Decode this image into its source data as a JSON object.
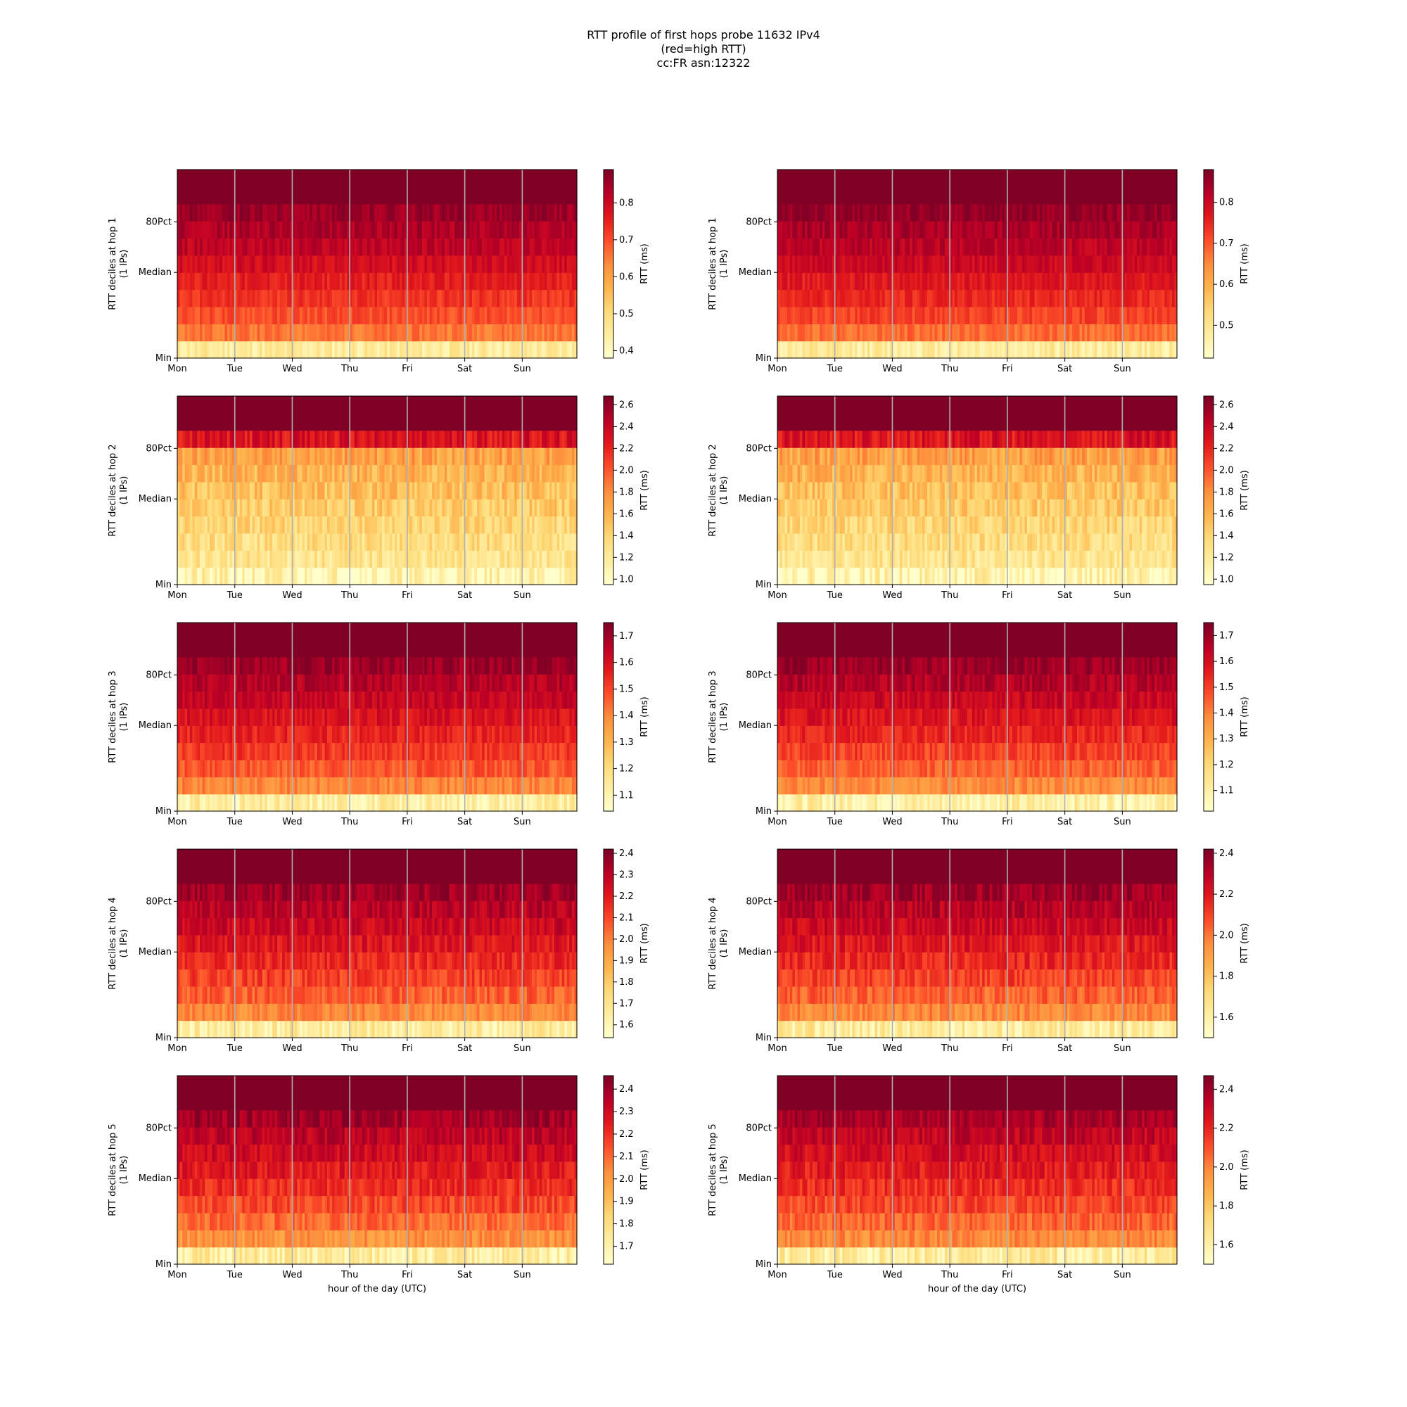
{
  "figure": {
    "title_lines": [
      "RTT profile of first hops probe 11632 IPv4",
      "(red=high RTT)",
      "cc:FR asn:12322"
    ],
    "xlabel": "hour of the day (UTC)",
    "colorbar_label": "RTT (ms)",
    "colormap": [
      "#ffffcc",
      "#ffeda0",
      "#fed976",
      "#feb24c",
      "#fd8d3c",
      "#fc4e2a",
      "#e31a1c",
      "#bd0026",
      "#800026"
    ]
  },
  "chart_data": [
    {
      "type": "heatmap",
      "col": "left",
      "hop": 1,
      "ylabel": "RTT deciles at hop 1",
      "ylabel2": "(1 IPs)",
      "yticks": [
        "80Pct",
        "Median",
        "Min"
      ],
      "x_ticks": [
        "Mon",
        "Tue",
        "Wed",
        "Thu",
        "Fri",
        "Sat",
        "Sun"
      ],
      "colorbar": {
        "min": 0.38,
        "max": 0.89,
        "ticks": [
          "0.4",
          "0.5",
          "0.6",
          "0.7",
          "0.8"
        ]
      },
      "decile_levels": [
        0.45,
        0.66,
        0.7,
        0.73,
        0.76,
        0.79,
        0.82,
        0.84,
        0.86,
        0.89,
        0.89
      ],
      "noise": 0.06,
      "seed": 11
    },
    {
      "type": "heatmap",
      "col": "right",
      "hop": 1,
      "ylabel": "RTT deciles at hop 1",
      "ylabel2": "(1 IPs)",
      "yticks": [
        "80Pct",
        "Median",
        "Min"
      ],
      "x_ticks": [
        "Mon",
        "Tue",
        "Wed",
        "Thu",
        "Fri",
        "Sat",
        "Sun"
      ],
      "colorbar": {
        "min": 0.42,
        "max": 0.88,
        "ticks": [
          "0.5",
          "0.6",
          "0.7",
          "0.8"
        ]
      },
      "decile_levels": [
        0.48,
        0.68,
        0.72,
        0.75,
        0.77,
        0.8,
        0.82,
        0.84,
        0.86,
        0.88,
        0.88
      ],
      "noise": 0.06,
      "seed": 12
    },
    {
      "type": "heatmap",
      "col": "left",
      "hop": 2,
      "ylabel": "RTT deciles at hop 2",
      "ylabel2": "(1 IPs)",
      "yticks": [
        "80Pct",
        "Median",
        "Min"
      ],
      "x_ticks": [
        "Mon",
        "Tue",
        "Wed",
        "Thu",
        "Fri",
        "Sat",
        "Sun"
      ],
      "colorbar": {
        "min": 0.95,
        "max": 2.68,
        "ticks": [
          "1.0",
          "1.2",
          "1.4",
          "1.6",
          "1.8",
          "2.0",
          "2.2",
          "2.4",
          "2.6"
        ]
      },
      "decile_levels": [
        1.05,
        1.25,
        1.32,
        1.38,
        1.45,
        1.52,
        1.6,
        1.7,
        2.3,
        2.68,
        2.68
      ],
      "noise": 0.1,
      "seed": 21
    },
    {
      "type": "heatmap",
      "col": "right",
      "hop": 2,
      "ylabel": "RTT deciles at hop 2",
      "ylabel2": "(1 IPs)",
      "yticks": [
        "80Pct",
        "Median",
        "Min"
      ],
      "x_ticks": [
        "Mon",
        "Tue",
        "Wed",
        "Thu",
        "Fri",
        "Sat",
        "Sun"
      ],
      "colorbar": {
        "min": 0.95,
        "max": 2.68,
        "ticks": [
          "1.0",
          "1.2",
          "1.4",
          "1.6",
          "1.8",
          "2.0",
          "2.2",
          "2.4",
          "2.6"
        ]
      },
      "decile_levels": [
        1.05,
        1.25,
        1.32,
        1.38,
        1.45,
        1.52,
        1.6,
        1.7,
        2.3,
        2.68,
        2.68
      ],
      "noise": 0.1,
      "seed": 22
    },
    {
      "type": "heatmap",
      "col": "left",
      "hop": 3,
      "ylabel": "RTT deciles at hop 3",
      "ylabel2": "(1 IPs)",
      "yticks": [
        "80Pct",
        "Median",
        "Min"
      ],
      "x_ticks": [
        "Mon",
        "Tue",
        "Wed",
        "Thu",
        "Fri",
        "Sat",
        "Sun"
      ],
      "colorbar": {
        "min": 1.04,
        "max": 1.75,
        "ticks": [
          "1.1",
          "1.2",
          "1.3",
          "1.4",
          "1.5",
          "1.6",
          "1.7"
        ]
      },
      "decile_levels": [
        1.12,
        1.4,
        1.47,
        1.52,
        1.56,
        1.6,
        1.64,
        1.67,
        1.71,
        1.75,
        1.75
      ],
      "noise": 0.07,
      "seed": 31
    },
    {
      "type": "heatmap",
      "col": "right",
      "hop": 3,
      "ylabel": "RTT deciles at hop 3",
      "ylabel2": "(1 IPs)",
      "yticks": [
        "80Pct",
        "Median",
        "Min"
      ],
      "x_ticks": [
        "Mon",
        "Tue",
        "Wed",
        "Thu",
        "Fri",
        "Sat",
        "Sun"
      ],
      "colorbar": {
        "min": 1.02,
        "max": 1.75,
        "ticks": [
          "1.1",
          "1.2",
          "1.3",
          "1.4",
          "1.5",
          "1.6",
          "1.7"
        ]
      },
      "decile_levels": [
        1.1,
        1.38,
        1.45,
        1.5,
        1.55,
        1.59,
        1.63,
        1.67,
        1.71,
        1.75,
        1.75
      ],
      "noise": 0.07,
      "seed": 32
    },
    {
      "type": "heatmap",
      "col": "left",
      "hop": 4,
      "ylabel": "RTT deciles at hop 4",
      "ylabel2": "(1 IPs)",
      "yticks": [
        "80Pct",
        "Median",
        "Min"
      ],
      "x_ticks": [
        "Mon",
        "Tue",
        "Wed",
        "Thu",
        "Fri",
        "Sat",
        "Sun"
      ],
      "colorbar": {
        "min": 1.54,
        "max": 2.42,
        "ticks": [
          "1.6",
          "1.7",
          "1.8",
          "1.9",
          "2.0",
          "2.1",
          "2.2",
          "2.3",
          "2.4"
        ]
      },
      "decile_levels": [
        1.65,
        1.98,
        2.06,
        2.12,
        2.17,
        2.22,
        2.27,
        2.31,
        2.36,
        2.42,
        2.42
      ],
      "noise": 0.08,
      "seed": 41
    },
    {
      "type": "heatmap",
      "col": "right",
      "hop": 4,
      "ylabel": "RTT deciles at hop 4",
      "ylabel2": "(1 IPs)",
      "yticks": [
        "80Pct",
        "Median",
        "Min"
      ],
      "x_ticks": [
        "Mon",
        "Tue",
        "Wed",
        "Thu",
        "Fri",
        "Sat",
        "Sun"
      ],
      "colorbar": {
        "min": 1.5,
        "max": 2.42,
        "ticks": [
          "1.6",
          "1.8",
          "2.0",
          "2.2",
          "2.4"
        ]
      },
      "decile_levels": [
        1.62,
        1.96,
        2.04,
        2.1,
        2.16,
        2.21,
        2.26,
        2.31,
        2.36,
        2.42,
        2.42
      ],
      "noise": 0.08,
      "seed": 42
    },
    {
      "type": "heatmap",
      "col": "left",
      "hop": 5,
      "ylabel": "RTT deciles at hop 5",
      "ylabel2": "(1 IPs)",
      "yticks": [
        "80Pct",
        "Median",
        "Min"
      ],
      "x_ticks": [
        "Mon",
        "Tue",
        "Wed",
        "Thu",
        "Fri",
        "Sat",
        "Sun"
      ],
      "colorbar": {
        "min": 1.62,
        "max": 2.46,
        "ticks": [
          "1.7",
          "1.8",
          "1.9",
          "2.0",
          "2.1",
          "2.2",
          "2.3",
          "2.4"
        ]
      },
      "decile_levels": [
        1.72,
        2.02,
        2.1,
        2.16,
        2.21,
        2.26,
        2.31,
        2.35,
        2.4,
        2.46,
        2.46
      ],
      "noise": 0.08,
      "seed": 51
    },
    {
      "type": "heatmap",
      "col": "right",
      "hop": 5,
      "ylabel": "RTT deciles at hop 5",
      "ylabel2": "(1 IPs)",
      "yticks": [
        "80Pct",
        "Median",
        "Min"
      ],
      "x_ticks": [
        "Mon",
        "Tue",
        "Wed",
        "Thu",
        "Fri",
        "Sat",
        "Sun"
      ],
      "colorbar": {
        "min": 1.5,
        "max": 2.47,
        "ticks": [
          "1.6",
          "1.8",
          "2.0",
          "2.2",
          "2.4"
        ]
      },
      "decile_levels": [
        1.62,
        1.98,
        2.06,
        2.12,
        2.18,
        2.23,
        2.28,
        2.33,
        2.39,
        2.47,
        2.47
      ],
      "noise": 0.08,
      "seed": 52
    }
  ]
}
